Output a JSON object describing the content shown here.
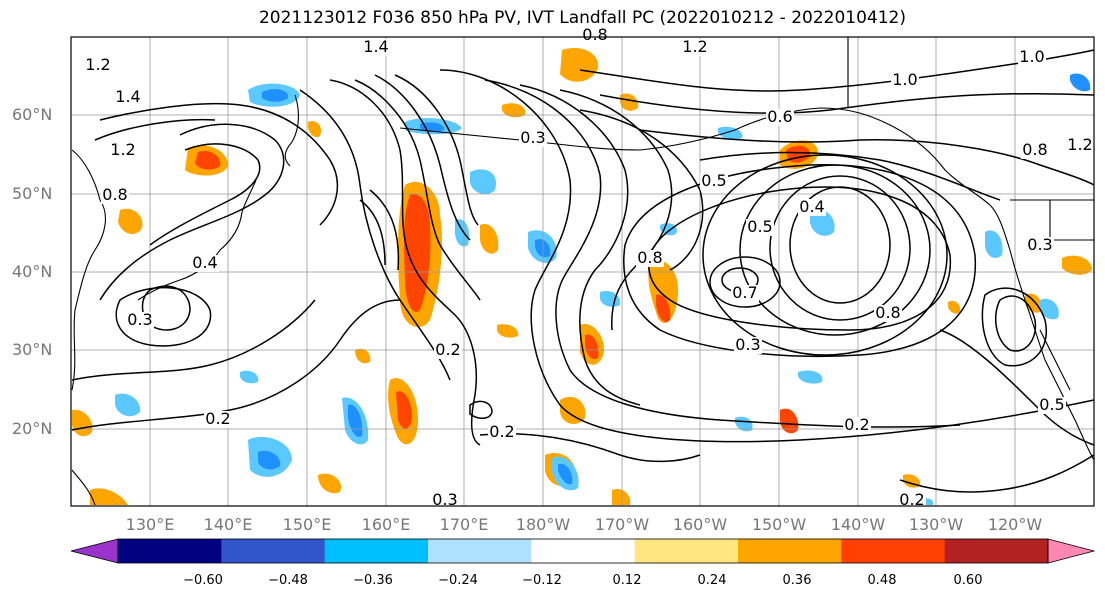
{
  "title": "2021123012 F036 850 hPa PV, IVT Landfall PC (2022010212 - 2022010412)",
  "map": {
    "lat_ticks": [
      "60°N",
      "50°N",
      "40°N",
      "30°N",
      "20°N"
    ],
    "lon_ticks": [
      "130°E",
      "140°E",
      "150°E",
      "160°E",
      "170°E",
      "180°W",
      "170°W",
      "160°W",
      "150°W",
      "140°W",
      "130°W",
      "120°W"
    ],
    "contour_labels": [
      "1.2",
      "1.4",
      "1.2",
      "1.4",
      "1.2",
      "0.8",
      "1.2",
      "0.3",
      "0.6",
      "0.5",
      "0.4",
      "0.5",
      "0.8",
      "1.0",
      "0.7",
      "0.8",
      "0.3",
      "0.2",
      "0.2",
      "0.2",
      "0.8",
      "0.3",
      "0.5",
      "0.2",
      "0.3",
      "0.2",
      "0.4",
      "0.3",
      "1.0",
      "0.8"
    ],
    "shading_colors": {
      "neg_strong": "#1e90ff",
      "neg_weak": "#5bc8ff",
      "pos_weak": "#ffd54a",
      "pos_mid": "#ffa500",
      "pos_strong": "#ff4500"
    }
  },
  "colorbar": {
    "colors": [
      "#9933cc",
      "#000080",
      "#3355cc",
      "#00bfff",
      "#b0e0ff",
      "#ffffff",
      "#ffe680",
      "#ffa500",
      "#ff4000",
      "#b22222",
      "#ff88b0"
    ],
    "labels": [
      "−0.60",
      "−0.48",
      "−0.36",
      "−0.24",
      "−0.12",
      "0.12",
      "0.24",
      "0.36",
      "0.48",
      "0.60"
    ]
  }
}
